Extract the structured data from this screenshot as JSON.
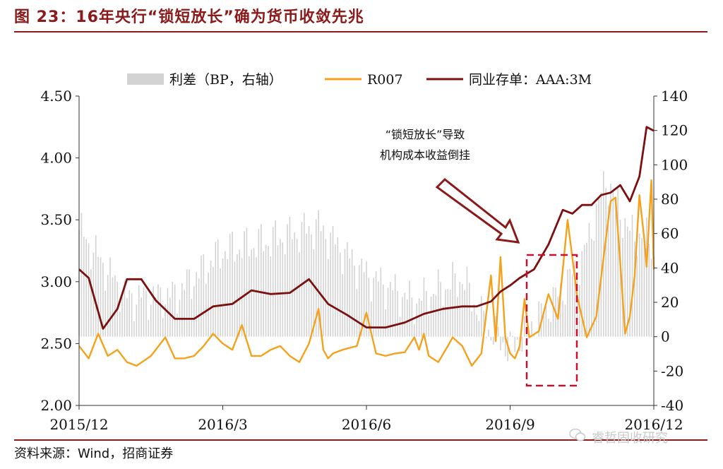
{
  "header": {
    "title": "图 23：16年央行“锁短放长”确为货币收敛先兆"
  },
  "footer": {
    "source": "资料来源：Wind，招商证券",
    "watermark": "睿哲固收研究"
  },
  "chart_data": {
    "type": "line",
    "x_tick_labels": [
      "2015/12",
      "2016/3",
      "2016/6",
      "2016/9",
      "2016/12"
    ],
    "y_left": {
      "ticks": [
        "2.00",
        "2.50",
        "3.00",
        "3.50",
        "4.00",
        "4.50"
      ],
      "range": [
        2.0,
        4.5
      ]
    },
    "y_right": {
      "ticks": [
        "-40",
        "-20",
        "0",
        "20",
        "40",
        "60",
        "80",
        "100",
        "120",
        "140"
      ],
      "range": [
        -40,
        140
      ]
    },
    "legend": [
      {
        "label": "利差（BP，右轴）",
        "color": "#d3d3d3",
        "kind": "bar"
      },
      {
        "label": "R007",
        "color": "#f4a21d",
        "kind": "line"
      },
      {
        "label": "同业存单：AAA:3M",
        "color": "#7b1010",
        "kind": "line"
      }
    ],
    "annotation": {
      "line1": "“锁短放长”导致",
      "line2": "机构成本收益倒挂"
    },
    "series": [
      {
        "name": "同业存单：AAA:3M",
        "axis": "left",
        "color": "#7b1010",
        "x": [
          0.0,
          0.2,
          0.5,
          0.8,
          1.0,
          1.3,
          1.6,
          2.0,
          2.4,
          2.8,
          3.2,
          3.6,
          4.0,
          4.4,
          4.8,
          5.2,
          5.6,
          6.0,
          6.4,
          6.8,
          7.2,
          7.6,
          8.0,
          8.3,
          8.6,
          8.8,
          9.0,
          9.2,
          9.5,
          9.8,
          10.1,
          10.3,
          10.5,
          10.7,
          10.9,
          11.1,
          11.3,
          11.5,
          11.7,
          11.85,
          12.0
        ],
        "values": [
          3.1,
          3.03,
          2.62,
          2.78,
          3.02,
          3.02,
          2.85,
          2.7,
          2.7,
          2.8,
          2.82,
          2.93,
          2.9,
          2.91,
          3.02,
          2.82,
          2.73,
          2.63,
          2.63,
          2.67,
          2.74,
          2.78,
          2.8,
          2.8,
          2.84,
          2.92,
          2.97,
          3.03,
          3.1,
          3.3,
          3.58,
          3.55,
          3.62,
          3.62,
          3.7,
          3.72,
          3.78,
          3.65,
          3.85,
          4.25,
          4.22
        ]
      },
      {
        "name": "R007",
        "axis": "left",
        "color": "#f4a21d",
        "x": [
          0.0,
          0.2,
          0.4,
          0.6,
          0.8,
          1.0,
          1.2,
          1.5,
          1.8,
          2.0,
          2.2,
          2.4,
          2.6,
          2.8,
          3.0,
          3.2,
          3.4,
          3.6,
          3.8,
          4.0,
          4.2,
          4.4,
          4.6,
          4.8,
          5.0,
          5.1,
          5.2,
          5.3,
          5.5,
          5.8,
          6.0,
          6.2,
          6.4,
          6.6,
          6.8,
          7.0,
          7.1,
          7.2,
          7.3,
          7.5,
          7.7,
          7.8,
          8.0,
          8.2,
          8.4,
          8.6,
          8.7,
          8.8,
          8.9,
          9.0,
          9.1,
          9.2,
          9.3,
          9.4,
          9.6,
          9.8,
          10.0,
          10.2,
          10.4,
          10.6,
          10.8,
          11.0,
          11.1,
          11.2,
          11.3,
          11.4,
          11.5,
          11.6,
          11.7,
          11.8,
          11.85,
          11.9,
          11.95,
          12.0
        ],
        "values": [
          2.48,
          2.38,
          2.58,
          2.4,
          2.45,
          2.35,
          2.32,
          2.4,
          2.55,
          2.38,
          2.38,
          2.4,
          2.48,
          2.58,
          2.5,
          2.45,
          2.65,
          2.4,
          2.4,
          2.45,
          2.48,
          2.4,
          2.35,
          2.5,
          2.78,
          2.45,
          2.38,
          2.42,
          2.45,
          2.48,
          2.75,
          2.42,
          2.4,
          2.42,
          2.43,
          2.55,
          2.45,
          2.58,
          2.4,
          2.35,
          2.48,
          2.55,
          2.48,
          2.32,
          2.42,
          3.05,
          2.52,
          3.2,
          2.55,
          2.42,
          2.38,
          2.48,
          2.86,
          2.55,
          2.6,
          2.9,
          2.7,
          3.5,
          2.88,
          2.55,
          2.72,
          3.35,
          3.65,
          3.68,
          3.15,
          2.58,
          2.72,
          3.05,
          3.7,
          3.35,
          3.12,
          3.48,
          3.82,
          3.1
        ]
      },
      {
        "name": "利差（BP，右轴）",
        "axis": "right",
        "color": "#d3d3d3",
        "x": [
          0.0,
          1.0,
          2.0,
          3.0,
          4.0,
          5.0,
          6.0,
          7.0,
          8.0,
          8.5,
          9.0,
          9.5,
          10.0,
          10.5,
          11.0,
          11.5,
          12.0
        ],
        "values": [
          62,
          22,
          24,
          50,
          56,
          64,
          36,
          20,
          34,
          6,
          -8,
          8,
          24,
          44,
          92,
          60,
          56
        ]
      }
    ]
  }
}
